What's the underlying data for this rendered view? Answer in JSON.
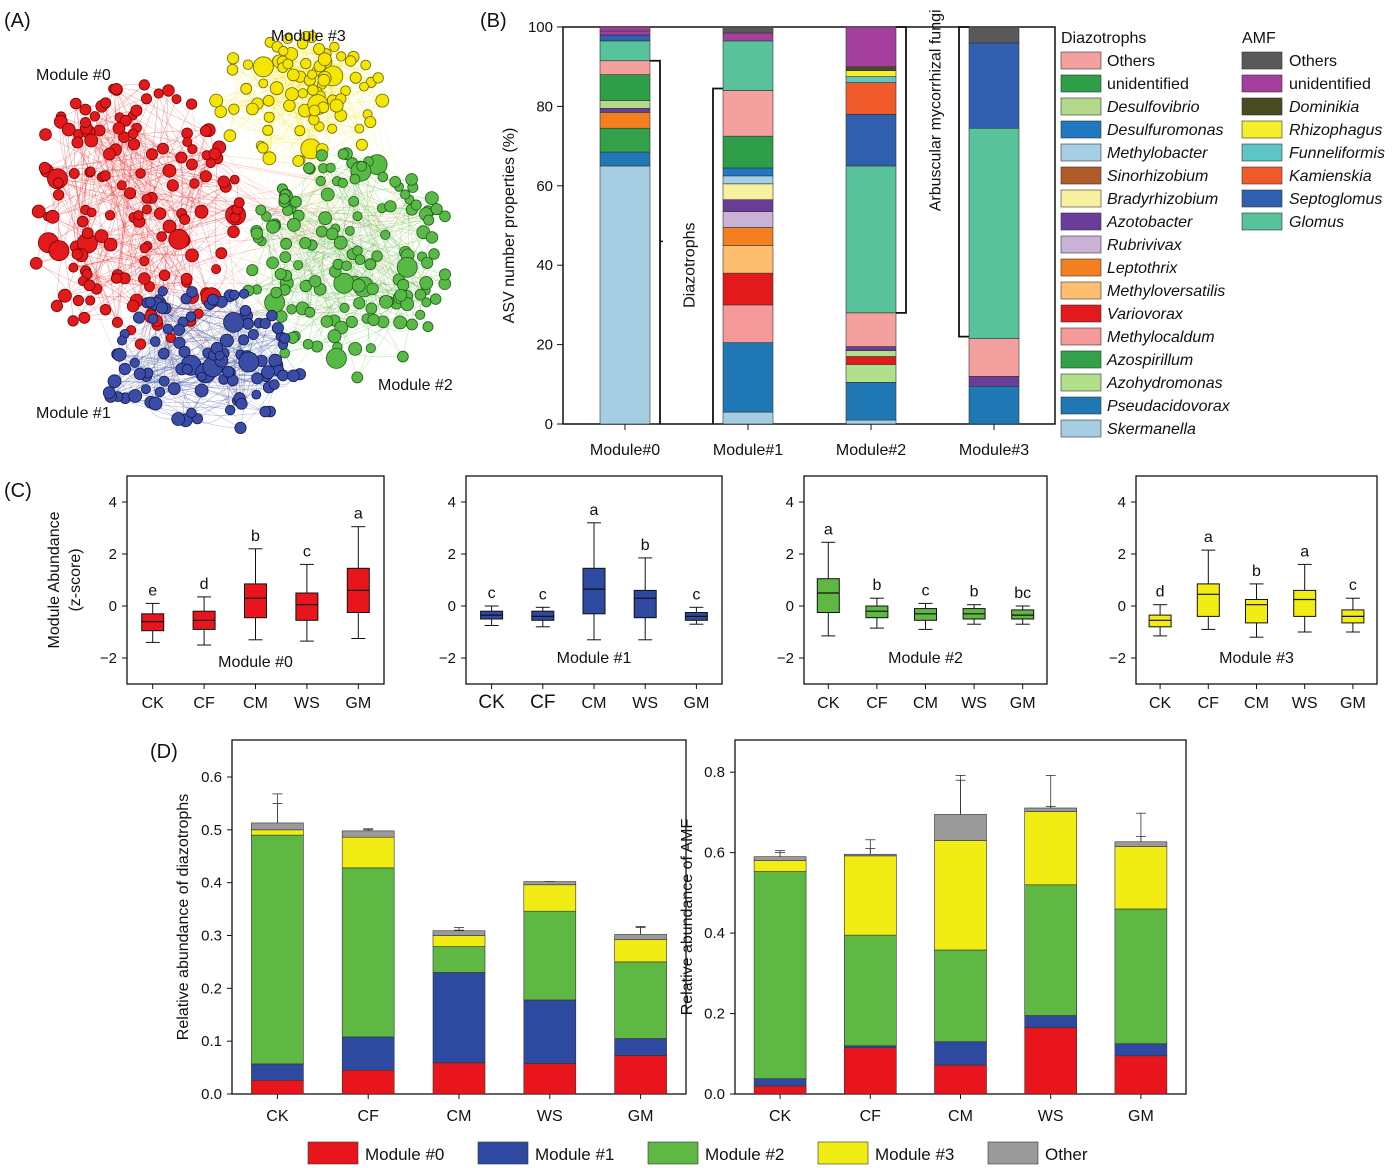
{
  "panel_labels": {
    "A": "(A)",
    "B": "(B)",
    "C": "(C)",
    "D": "(D)"
  },
  "colors": {
    "module0": "#e8161c",
    "module1": "#2e4aa0",
    "module2": "#5fb843",
    "module3": "#f2ec15",
    "other": "#9a9a9a",
    "yellow_net": "#f4e600",
    "red_net": "#e31a1c",
    "blue_net": "#3a4ca6",
    "green_net": "#59b947"
  },
  "network": {
    "labels": [
      "Module #0",
      "Module #1",
      "Module #2",
      "Module #3"
    ]
  },
  "chart_data": [
    {
      "id": "B",
      "type": "bar",
      "stacked": true,
      "ylabel": "ASV number properties (%)",
      "ylim": [
        0,
        100
      ],
      "yticks": [
        0,
        20,
        40,
        60,
        80,
        100
      ],
      "categories": [
        "Module#0",
        "Module#1",
        "Module#2",
        "Module#3"
      ],
      "bracket_labels": [
        "Diazotrophs",
        "Arbuscular mycorrhizal fungi"
      ],
      "bracket_split": [
        91.5,
        84.5,
        28,
        22
      ],
      "legend_diazotrophs_title": "Diazotrophs",
      "legend_amf_title": "AMF",
      "legend_diazotrophs": [
        {
          "name": "Others",
          "color": "#f4a09e"
        },
        {
          "name": "unidentified",
          "color": "#2e9e48"
        },
        {
          "name": "Desulfovibrio",
          "color": "#b4d98b"
        },
        {
          "name": "Desulfuromonas",
          "color": "#1f78c1"
        },
        {
          "name": "Methylobacter",
          "color": "#a6cfe5"
        },
        {
          "name": "Sinorhizobium",
          "color": "#b25b2a"
        },
        {
          "name": "Bradyrhizobium",
          "color": "#f7f0a0"
        },
        {
          "name": "Azotobacter",
          "color": "#6a3d9a"
        },
        {
          "name": "Rubrivivax",
          "color": "#cab2d6"
        },
        {
          "name": "Leptothrix",
          "color": "#f47f20"
        },
        {
          "name": "Methyloversatilis",
          "color": "#fdbf6f"
        },
        {
          "name": "Variovorax",
          "color": "#e31a1c"
        },
        {
          "name": "Methylocaldum",
          "color": "#f49a9a"
        },
        {
          "name": "Azospirillum",
          "color": "#33a04a"
        },
        {
          "name": "Azohydromonas",
          "color": "#b2df8a"
        },
        {
          "name": "Pseudacidovorax",
          "color": "#1f78b4"
        },
        {
          "name": "Skermanella",
          "color": "#a6cee3"
        }
      ],
      "legend_amf": [
        {
          "name": "Others",
          "color": "#595959"
        },
        {
          "name": "unidentified",
          "color": "#a53f9e"
        },
        {
          "name": "Dominikia",
          "color": "#4a4a20"
        },
        {
          "name": "Rhizophagus",
          "color": "#f5ee2a"
        },
        {
          "name": "Funneliformis",
          "color": "#5ec6c7"
        },
        {
          "name": "Kamienskia",
          "color": "#f15a2b"
        },
        {
          "name": "Septoglomus",
          "color": "#2f5fae"
        },
        {
          "name": "Glomus",
          "color": "#58c29b"
        }
      ],
      "stacks": [
        [
          {
            "v": 65,
            "c": "#a6cee3"
          },
          {
            "v": 3.5,
            "c": "#1f78b4"
          },
          {
            "v": 6,
            "c": "#33a04a"
          },
          {
            "v": 4,
            "c": "#f47f20"
          },
          {
            "v": 1,
            "c": "#6a3d9a"
          },
          {
            "v": 2,
            "c": "#b4d98b"
          },
          {
            "v": 6.5,
            "c": "#2e9e48"
          },
          {
            "v": 3.5,
            "c": "#f4a09e"
          },
          {
            "v": 5,
            "c": "#58c29b"
          },
          {
            "v": 1.5,
            "c": "#2f5fae"
          },
          {
            "v": 1,
            "c": "#a53f9e"
          },
          {
            "v": 1,
            "c": "#a53f9e"
          }
        ],
        [
          {
            "v": 3,
            "c": "#a6cee3"
          },
          {
            "v": 17.5,
            "c": "#1f78b4"
          },
          {
            "v": 9.5,
            "c": "#f49a9a"
          },
          {
            "v": 8,
            "c": "#e31a1c"
          },
          {
            "v": 7,
            "c": "#fdbf6f"
          },
          {
            "v": 4.5,
            "c": "#f47f20"
          },
          {
            "v": 4,
            "c": "#cab2d6"
          },
          {
            "v": 3,
            "c": "#6a3d9a"
          },
          {
            "v": 4,
            "c": "#f7f0a0"
          },
          {
            "v": 2,
            "c": "#a6cfe5"
          },
          {
            "v": 2,
            "c": "#1f78c1"
          },
          {
            "v": 8,
            "c": "#2e9e48"
          },
          {
            "v": 11.5,
            "c": "#f4a09e"
          },
          {
            "v": 12.5,
            "c": "#58c29b"
          },
          {
            "v": 2,
            "c": "#a53f9e"
          },
          {
            "v": 1.5,
            "c": "#595959"
          }
        ],
        [
          {
            "v": 1,
            "c": "#a6cee3"
          },
          {
            "v": 9.5,
            "c": "#1f78b4"
          },
          {
            "v": 4.5,
            "c": "#b2df8a"
          },
          {
            "v": 2,
            "c": "#e31a1c"
          },
          {
            "v": 1.5,
            "c": "#b2df8a"
          },
          {
            "v": 1,
            "c": "#6a3d9a"
          },
          {
            "v": 8.5,
            "c": "#f4a09e"
          },
          {
            "v": 37,
            "c": "#58c29b"
          },
          {
            "v": 13,
            "c": "#2f5fae"
          },
          {
            "v": 8,
            "c": "#f15a2b"
          },
          {
            "v": 1.5,
            "c": "#5ec6c7"
          },
          {
            "v": 1.5,
            "c": "#f5ee2a"
          },
          {
            "v": 1,
            "c": "#4a4a20"
          },
          {
            "v": 10,
            "c": "#a53f9e"
          }
        ],
        [
          {
            "v": 9.5,
            "c": "#1f78b4"
          },
          {
            "v": 2.5,
            "c": "#6a3d9a"
          },
          {
            "v": 9.5,
            "c": "#f4a09e"
          },
          {
            "v": 53,
            "c": "#58c29b"
          },
          {
            "v": 21.5,
            "c": "#2f5fae"
          },
          {
            "v": 4,
            "c": "#595959"
          }
        ]
      ]
    },
    {
      "id": "C",
      "type": "box",
      "ylabel": "Module Abundance\n(z-score)",
      "ylim": [
        -3,
        5
      ],
      "yticks": [
        -2,
        0,
        2,
        4
      ],
      "categories": [
        "CK",
        "CF",
        "CM",
        "WS",
        "GM"
      ],
      "panels": [
        {
          "title": "Module #0",
          "color": "#e8161c",
          "letters": [
            "e",
            "d",
            "b",
            "c",
            "a"
          ],
          "boxes": [
            [
              -1.4,
              -0.95,
              -0.6,
              -0.3,
              0.1
            ],
            [
              -1.5,
              -0.9,
              -0.55,
              -0.2,
              0.35
            ],
            [
              -1.3,
              -0.45,
              0.3,
              0.85,
              2.2
            ],
            [
              -1.35,
              -0.55,
              0.05,
              0.5,
              1.6
            ],
            [
              -1.25,
              -0.25,
              0.6,
              1.45,
              3.05
            ]
          ]
        },
        {
          "title": "Module #1",
          "color": "#2e4aa0",
          "letters": [
            "c",
            "c",
            "a",
            "b",
            "c"
          ],
          "boxes": [
            [
              -0.75,
              -0.5,
              -0.35,
              -0.2,
              0
            ],
            [
              -0.8,
              -0.55,
              -0.4,
              -0.2,
              -0.05
            ],
            [
              -1.3,
              -0.3,
              0.65,
              1.45,
              3.2
            ],
            [
              -1.3,
              -0.45,
              0.3,
              0.6,
              1.85
            ],
            [
              -0.7,
              -0.55,
              -0.4,
              -0.25,
              -0.05
            ]
          ]
        },
        {
          "title": "Module #2",
          "color": "#5fb843",
          "letters": [
            "a",
            "b",
            "c",
            "b",
            "bc"
          ],
          "boxes": [
            [
              -1.15,
              -0.25,
              0.5,
              1.05,
              2.45
            ],
            [
              -0.85,
              -0.45,
              -0.2,
              0,
              0.3
            ],
            [
              -0.9,
              -0.55,
              -0.3,
              -0.1,
              0.1
            ],
            [
              -0.7,
              -0.5,
              -0.3,
              -0.1,
              0.05
            ],
            [
              -0.7,
              -0.5,
              -0.35,
              -0.15,
              0
            ]
          ]
        },
        {
          "title": "Module #3",
          "color": "#f2ec15",
          "letters": [
            "d",
            "a",
            "b",
            "a",
            "c"
          ],
          "boxes": [
            [
              -1.15,
              -0.8,
              -0.55,
              -0.35,
              0.05
            ],
            [
              -0.9,
              -0.4,
              0.45,
              0.85,
              2.15
            ],
            [
              -1.2,
              -0.65,
              0.05,
              0.25,
              0.85
            ],
            [
              -1,
              -0.4,
              0.25,
              0.6,
              1.6
            ],
            [
              -1,
              -0.65,
              -0.4,
              -0.15,
              0.3
            ]
          ]
        }
      ]
    },
    {
      "id": "D1",
      "type": "bar",
      "stacked": true,
      "ylabel": "Relative abundance of diazotrophs",
      "ylim": [
        0,
        0.67
      ],
      "yticks": [
        "0.0",
        "0.1",
        "0.2",
        "0.3",
        "0.4",
        "0.5",
        "0.6"
      ],
      "categories": [
        "CK",
        "CF",
        "CM",
        "WS",
        "GM"
      ],
      "series": [
        {
          "name": "Module #0",
          "values": [
            0.026,
            0.045,
            0.059,
            0.058,
            0.073
          ],
          "err": [
            0.032,
            0.066,
            0.072,
            0.078,
            0.084
          ]
        },
        {
          "name": "Module #1",
          "values": [
            0.031,
            0.063,
            0.171,
            0.12,
            0.032
          ],
          "err": [
            0.065,
            0.172,
            0.268,
            0.248,
            0.11
          ]
        },
        {
          "name": "Module #2",
          "values": [
            0.433,
            0.32,
            0.049,
            0.168,
            0.145
          ],
          "err": [
            0.5,
            0.452,
            0.3,
            0.375,
            0.3
          ]
        },
        {
          "name": "Module #3",
          "values": [
            0.01,
            0.058,
            0.021,
            0.05,
            0.042
          ],
          "err": [
            0.55,
            0.502,
            0.31,
            0.4,
            0.315
          ]
        },
        {
          "name": "Other",
          "values": [
            0.013,
            0.012,
            0.009,
            0.006,
            0.01
          ],
          "err": [
            0.568,
            0.5,
            0.315,
            0.402,
            0.317
          ]
        }
      ]
    },
    {
      "id": "D2",
      "type": "bar",
      "stacked": true,
      "ylabel": "Relative abundance of AMF",
      "ylim": [
        0,
        0.88
      ],
      "yticks": [
        "0.0",
        "0.2",
        "0.4",
        "0.6",
        "0.8"
      ],
      "categories": [
        "CK",
        "CF",
        "CM",
        "WS",
        "GM"
      ],
      "series": [
        {
          "name": "Module #0",
          "values": [
            0.02,
            0.115,
            0.072,
            0.165,
            0.095
          ],
          "err": [
            0.022,
            0.12,
            0.11,
            0.225,
            0.14
          ]
        },
        {
          "name": "Module #1",
          "values": [
            0.018,
            0.005,
            0.058,
            0.03,
            0.03
          ],
          "err": [
            0.05,
            0.155,
            0.155,
            0.308,
            0.17
          ]
        },
        {
          "name": "Module #2",
          "values": [
            0.515,
            0.275,
            0.228,
            0.325,
            0.335
          ],
          "err": [
            0.555,
            0.53,
            0.565,
            0.592,
            0.507
          ]
        },
        {
          "name": "Module #3",
          "values": [
            0.027,
            0.197,
            0.272,
            0.182,
            0.155
          ],
          "err": [
            0.6,
            0.61,
            0.78,
            0.715,
            0.64
          ]
        },
        {
          "name": "Other",
          "values": [
            0.01,
            0.004,
            0.065,
            0.009,
            0.012
          ],
          "err": [
            0.605,
            0.632,
            0.792,
            0.792,
            0.698
          ]
        }
      ]
    }
  ],
  "legend_bottom": [
    "Module #0",
    "Module #1",
    "Module #2",
    "Module #3",
    "Other"
  ]
}
